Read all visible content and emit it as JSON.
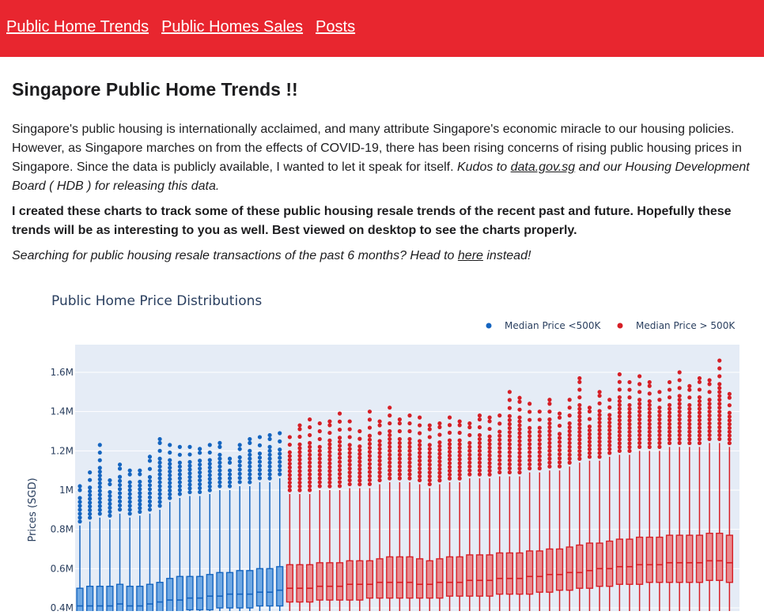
{
  "nav": {
    "items": [
      {
        "label": "Public Home Trends"
      },
      {
        "label": "Public Homes Sales"
      },
      {
        "label": "Posts"
      }
    ]
  },
  "page": {
    "title": "Singapore Public Home Trends !!",
    "intro_text": "Singapore's public housing is internationally acclaimed, and many attribute Singapore's economic miracle to our housing policies. However, as Singapore marches on from the effects of COVID-19, there has been rising concerns of rising public housing prices in Singapore. Since the data is publicly available, I wanted to let it speak for itself. ",
    "kudos_prefix": "Kudos to ",
    "kudos_link": "data.gov.sg",
    "kudos_suffix": " and our Housing Development Board ( HDB ) for releasing this data.",
    "bold_text": "I created these charts to track some of these public housing resale trends of the recent past and future. Hopefully these trends will be as interesting to you as well. Best viewed on desktop to see the charts properly.",
    "search_prefix": "Searching for public housing resale transactions of the past 6 months? Head to ",
    "search_link": "here",
    "search_suffix": " instead!"
  },
  "colors": {
    "nav_bg": "#e8262f",
    "blue": "#1565c0",
    "red": "#d61f26",
    "plot_bg": "#e5ecf6"
  },
  "chart_data": {
    "type": "box",
    "title": "Public Home Price Distributions",
    "xlabel": "",
    "ylabel": "Prices (SGD)",
    "ylim": [
      0.4,
      1.7
    ],
    "y_ticks": [
      {
        "value": 0.4,
        "label": "0.4M"
      },
      {
        "value": 0.6,
        "label": "0.6M"
      },
      {
        "value": 0.8,
        "label": "0.8M"
      },
      {
        "value": 1.0,
        "label": "1M"
      },
      {
        "value": 1.2,
        "label": "1.2M"
      },
      {
        "value": 1.4,
        "label": "1.4M"
      },
      {
        "value": 1.6,
        "label": "1.6M"
      }
    ],
    "legend_position": "top-right",
    "series": [
      {
        "name": "Median Price <500K",
        "color": "#1565c0",
        "medians": [
          0.41,
          0.41,
          0.41,
          0.41,
          0.42,
          0.41,
          0.41,
          0.42,
          0.43,
          0.44,
          0.44,
          0.45,
          0.45,
          0.46,
          0.46,
          0.47,
          0.47,
          0.47,
          0.48,
          0.48,
          0.49
        ],
        "q1": [
          0.37,
          0.37,
          0.37,
          0.37,
          0.37,
          0.37,
          0.37,
          0.37,
          0.38,
          0.38,
          0.38,
          0.39,
          0.39,
          0.39,
          0.4,
          0.4,
          0.4,
          0.4,
          0.41,
          0.41,
          0.41
        ],
        "q3": [
          0.5,
          0.51,
          0.51,
          0.51,
          0.52,
          0.51,
          0.51,
          0.52,
          0.53,
          0.55,
          0.56,
          0.56,
          0.56,
          0.57,
          0.58,
          0.58,
          0.59,
          0.59,
          0.6,
          0.6,
          0.61
        ],
        "whisker_high": [
          0.82,
          0.84,
          0.86,
          0.85,
          0.88,
          0.86,
          0.87,
          0.88,
          0.9,
          0.94,
          0.96,
          0.97,
          0.97,
          0.98,
          1.0,
          1.0,
          1.02,
          1.02,
          1.04,
          1.04,
          1.06
        ],
        "outlier_max": [
          1.02,
          1.09,
          1.23,
          1.05,
          1.13,
          1.1,
          1.1,
          1.17,
          1.26,
          1.23,
          1.22,
          1.22,
          1.21,
          1.23,
          1.24,
          1.16,
          1.23,
          1.26,
          1.27,
          1.28,
          1.29
        ]
      },
      {
        "name": "Median Price > 500K",
        "color": "#d61f26",
        "medians": [
          0.5,
          0.5,
          0.5,
          0.51,
          0.51,
          0.51,
          0.52,
          0.52,
          0.52,
          0.53,
          0.53,
          0.53,
          0.53,
          0.52,
          0.52,
          0.53,
          0.53,
          0.53,
          0.54,
          0.54,
          0.54,
          0.55,
          0.55,
          0.55,
          0.56,
          0.56,
          0.57,
          0.57,
          0.58,
          0.58,
          0.59,
          0.6,
          0.6,
          0.61,
          0.61,
          0.62,
          0.62,
          0.62,
          0.63,
          0.63,
          0.63,
          0.63,
          0.64,
          0.64,
          0.63
        ],
        "q1": [
          0.43,
          0.43,
          0.43,
          0.44,
          0.44,
          0.44,
          0.44,
          0.44,
          0.45,
          0.45,
          0.45,
          0.45,
          0.45,
          0.45,
          0.45,
          0.45,
          0.46,
          0.46,
          0.46,
          0.46,
          0.46,
          0.47,
          0.47,
          0.47,
          0.47,
          0.48,
          0.48,
          0.49,
          0.49,
          0.5,
          0.5,
          0.51,
          0.51,
          0.52,
          0.52,
          0.52,
          0.53,
          0.53,
          0.53,
          0.53,
          0.53,
          0.53,
          0.54,
          0.54,
          0.53
        ],
        "q3": [
          0.62,
          0.62,
          0.62,
          0.63,
          0.63,
          0.63,
          0.64,
          0.64,
          0.64,
          0.65,
          0.66,
          0.66,
          0.66,
          0.65,
          0.64,
          0.65,
          0.66,
          0.66,
          0.67,
          0.67,
          0.67,
          0.68,
          0.68,
          0.68,
          0.69,
          0.69,
          0.7,
          0.7,
          0.71,
          0.72,
          0.73,
          0.73,
          0.74,
          0.75,
          0.75,
          0.76,
          0.76,
          0.76,
          0.77,
          0.77,
          0.77,
          0.77,
          0.78,
          0.78,
          0.77
        ],
        "whisker_high": [
          0.98,
          0.98,
          0.98,
          1.0,
          1.0,
          1.0,
          1.01,
          1.01,
          1.01,
          1.03,
          1.04,
          1.04,
          1.04,
          1.03,
          1.01,
          1.03,
          1.04,
          1.04,
          1.06,
          1.06,
          1.06,
          1.07,
          1.07,
          1.07,
          1.09,
          1.09,
          1.1,
          1.1,
          1.12,
          1.14,
          1.15,
          1.15,
          1.17,
          1.18,
          1.18,
          1.2,
          1.2,
          1.2,
          1.22,
          1.22,
          1.22,
          1.22,
          1.24,
          1.24,
          1.22
        ],
        "outlier_max": [
          1.27,
          1.33,
          1.36,
          1.34,
          1.35,
          1.39,
          1.35,
          1.3,
          1.4,
          1.35,
          1.42,
          1.36,
          1.38,
          1.37,
          1.33,
          1.34,
          1.37,
          1.35,
          1.34,
          1.38,
          1.37,
          1.38,
          1.5,
          1.47,
          1.44,
          1.4,
          1.46,
          1.39,
          1.46,
          1.57,
          1.42,
          1.5,
          1.46,
          1.59,
          1.55,
          1.58,
          1.55,
          1.5,
          1.55,
          1.6,
          1.53,
          1.57,
          1.56,
          1.66,
          1.49
        ]
      }
    ]
  }
}
